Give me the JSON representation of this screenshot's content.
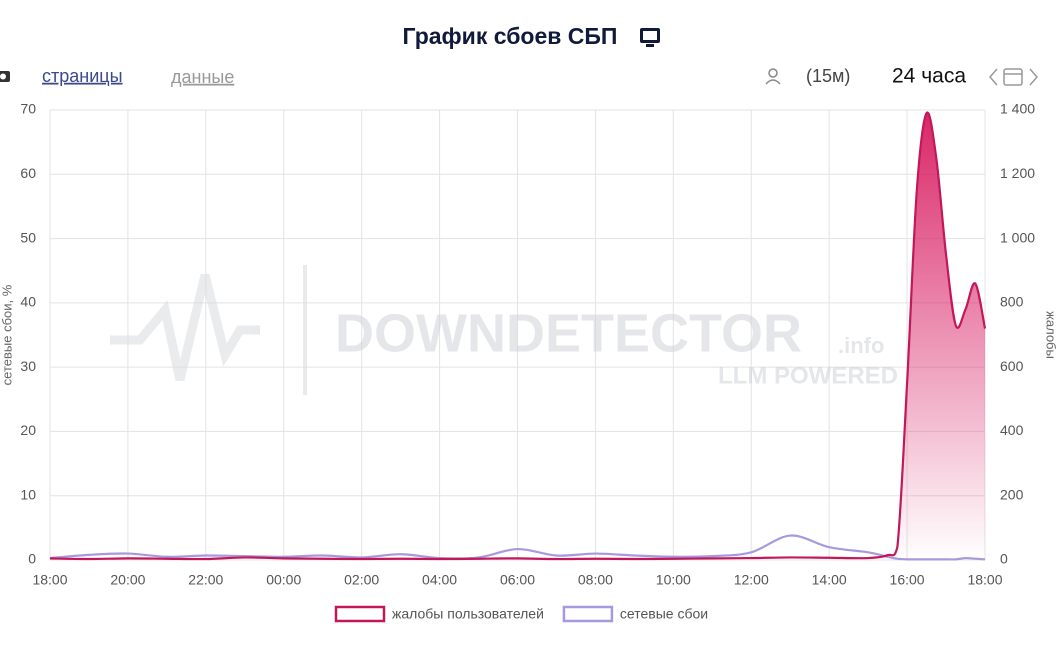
{
  "chart_data": {
    "type": "line",
    "title": "График сбоев СБП",
    "y_label": "сетевые сбои, %",
    "y2_label": "жалобы",
    "x": [
      0,
      1,
      2,
      3,
      4,
      5,
      6,
      7,
      8,
      9,
      10,
      11,
      12,
      13,
      14,
      15,
      16,
      17,
      18,
      19,
      20,
      21,
      21.5,
      21.75,
      22,
      22.25,
      22.5,
      22.75,
      23,
      23.25,
      23.5,
      23.75,
      24
    ],
    "series": [
      {
        "name": "жалобы пользователей",
        "color": "#c2185b",
        "axis": "y2",
        "area": true,
        "values": [
          5,
          3,
          5,
          4,
          3,
          8,
          5,
          4,
          3,
          4,
          3,
          4,
          5,
          3,
          4,
          3,
          4,
          5,
          6,
          8,
          7,
          6,
          15,
          40,
          550,
          1150,
          1390,
          1250,
          950,
          730,
          780,
          860,
          720
        ]
      },
      {
        "name": "сетевые сбои",
        "color": "#a899dc",
        "values": [
          0.3,
          0.8,
          1.0,
          0.5,
          0.7,
          0.6,
          0.5,
          0.7,
          0.4,
          0.9,
          0.3,
          0.4,
          1.7,
          0.7,
          1.0,
          0.7,
          0.5,
          0.6,
          1.2,
          3.8,
          2.0,
          1.2,
          0.5,
          0.2,
          0.1,
          0.1,
          0.1,
          0.1,
          0.1,
          0.1,
          0.3,
          0.2,
          0.1
        ]
      }
    ],
    "xlim": [
      0,
      24
    ],
    "xticks": [
      {
        "value": 0,
        "label": "18:00"
      },
      {
        "value": 2,
        "label": "20:00"
      },
      {
        "value": 4,
        "label": "22:00"
      },
      {
        "value": 6,
        "label": "00:00"
      },
      {
        "value": 8,
        "label": "02:00"
      },
      {
        "value": 10,
        "label": "04:00"
      },
      {
        "value": 12,
        "label": "06:00"
      },
      {
        "value": 14,
        "label": "08:00"
      },
      {
        "value": 16,
        "label": "10:00"
      },
      {
        "value": 18,
        "label": "12:00"
      },
      {
        "value": 20,
        "label": "14:00"
      },
      {
        "value": 22,
        "label": "16:00"
      },
      {
        "value": 24,
        "label": "18:00"
      }
    ],
    "ylim": [
      0,
      70
    ],
    "yticks": [
      0,
      10,
      20,
      30,
      40,
      50,
      60,
      70
    ],
    "y2lim": [
      0,
      1400
    ],
    "y2ticks": [
      0,
      200,
      400,
      600,
      800,
      {
        "value": 1000,
        "label": "1 000"
      },
      {
        "value": 1200,
        "label": "1 200"
      },
      {
        "value": 1400,
        "label": "1 400"
      }
    ],
    "grid": true,
    "legend": "bottom"
  },
  "header": {
    "links": [
      "страницы",
      "данные"
    ],
    "interval": "(15м)",
    "range": "24 часа"
  },
  "watermark": {
    "brand": "DOWNDETECTOR",
    "suffix": ".info",
    "tagline": "LLM POWERED"
  }
}
